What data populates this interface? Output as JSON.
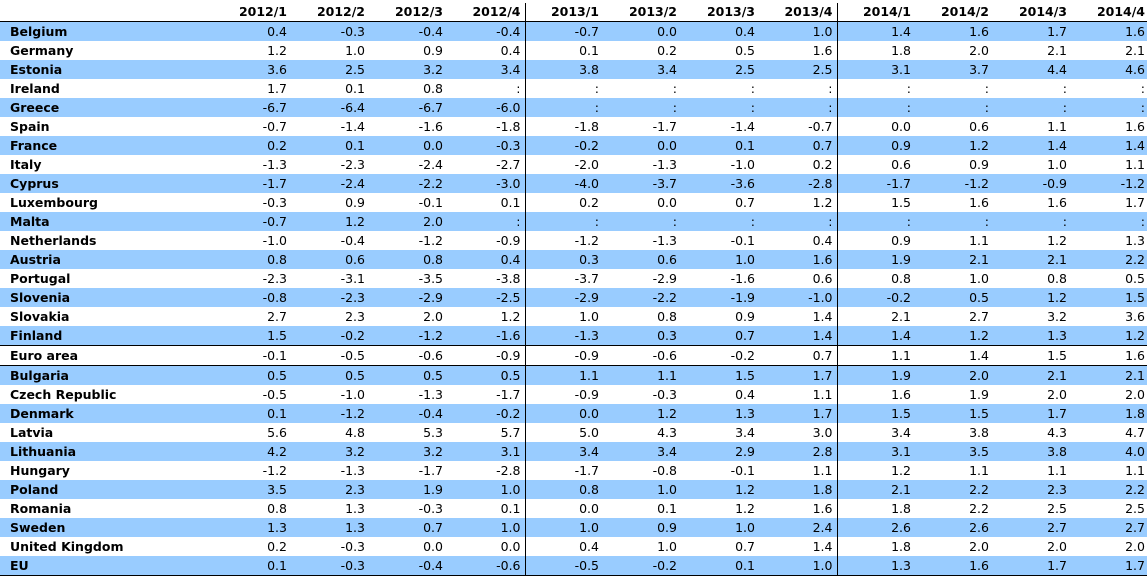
{
  "table": {
    "headers": [
      "",
      "2012/1",
      "2012/2",
      "2012/3",
      "2012/4",
      "2013/1",
      "2013/2",
      "2013/3",
      "2013/4",
      "2014/1",
      "2014/2",
      "2014/3",
      "2014/4"
    ],
    "rows": [
      {
        "country": "Belgium",
        "values": [
          "0.4",
          "-0.3",
          "-0.4",
          "-0.4",
          "-0.7",
          "0.0",
          "0.4",
          "1.0",
          "1.4",
          "1.6",
          "1.7",
          "1.6"
        ]
      },
      {
        "country": "Germany",
        "values": [
          "1.2",
          "1.0",
          "0.9",
          "0.4",
          "0.1",
          "0.2",
          "0.5",
          "1.6",
          "1.8",
          "2.0",
          "2.1",
          "2.1"
        ]
      },
      {
        "country": "Estonia",
        "values": [
          "3.6",
          "2.5",
          "3.2",
          "3.4",
          "3.8",
          "3.4",
          "2.5",
          "2.5",
          "3.1",
          "3.7",
          "4.4",
          "4.6"
        ]
      },
      {
        "country": "Ireland",
        "values": [
          "1.7",
          "0.1",
          "0.8",
          ":",
          ":",
          ":",
          ":",
          ":",
          ":",
          ":",
          ":",
          ":"
        ]
      },
      {
        "country": "Greece",
        "values": [
          "-6.7",
          "-6.4",
          "-6.7",
          "-6.0",
          ":",
          ":",
          ":",
          ":",
          ":",
          ":",
          ":",
          ":"
        ]
      },
      {
        "country": "Spain",
        "values": [
          "-0.7",
          "-1.4",
          "-1.6",
          "-1.8",
          "-1.8",
          "-1.7",
          "-1.4",
          "-0.7",
          "0.0",
          "0.6",
          "1.1",
          "1.6"
        ]
      },
      {
        "country": "France",
        "values": [
          "0.2",
          "0.1",
          "0.0",
          "-0.3",
          "-0.2",
          "0.0",
          "0.1",
          "0.7",
          "0.9",
          "1.2",
          "1.4",
          "1.4"
        ]
      },
      {
        "country": "Italy",
        "values": [
          "-1.3",
          "-2.3",
          "-2.4",
          "-2.7",
          "-2.0",
          "-1.3",
          "-1.0",
          "0.2",
          "0.6",
          "0.9",
          "1.0",
          "1.1"
        ]
      },
      {
        "country": "Cyprus",
        "values": [
          "-1.7",
          "-2.4",
          "-2.2",
          "-3.0",
          "-4.0",
          "-3.7",
          "-3.6",
          "-2.8",
          "-1.7",
          "-1.2",
          "-0.9",
          "-1.2"
        ]
      },
      {
        "country": "Luxembourg",
        "values": [
          "-0.3",
          "0.9",
          "-0.1",
          "0.1",
          "0.2",
          "0.0",
          "0.7",
          "1.2",
          "1.5",
          "1.6",
          "1.6",
          "1.7"
        ]
      },
      {
        "country": "Malta",
        "values": [
          "-0.7",
          "1.2",
          "2.0",
          ":",
          ":",
          ":",
          ":",
          ":",
          ":",
          ":",
          ":",
          ":"
        ]
      },
      {
        "country": "Netherlands",
        "values": [
          "-1.0",
          "-0.4",
          "-1.2",
          "-0.9",
          "-1.2",
          "-1.3",
          "-0.1",
          "0.4",
          "0.9",
          "1.1",
          "1.2",
          "1.3"
        ]
      },
      {
        "country": "Austria",
        "values": [
          "0.8",
          "0.6",
          "0.8",
          "0.4",
          "0.3",
          "0.6",
          "1.0",
          "1.6",
          "1.9",
          "2.1",
          "2.1",
          "2.2"
        ]
      },
      {
        "country": "Portugal",
        "values": [
          "-2.3",
          "-3.1",
          "-3.5",
          "-3.8",
          "-3.7",
          "-2.9",
          "-1.6",
          "0.6",
          "0.8",
          "1.0",
          "0.8",
          "0.5"
        ]
      },
      {
        "country": "Slovenia",
        "values": [
          "-0.8",
          "-2.3",
          "-2.9",
          "-2.5",
          "-2.9",
          "-2.2",
          "-1.9",
          "-1.0",
          "-0.2",
          "0.5",
          "1.2",
          "1.5"
        ]
      },
      {
        "country": "Slovakia",
        "values": [
          "2.7",
          "2.3",
          "2.0",
          "1.2",
          "1.0",
          "0.8",
          "0.9",
          "1.4",
          "2.1",
          "2.7",
          "3.2",
          "3.6"
        ]
      },
      {
        "country": "Finland",
        "values": [
          "1.5",
          "-0.2",
          "-1.2",
          "-1.6",
          "-1.3",
          "0.3",
          "0.7",
          "1.4",
          "1.4",
          "1.2",
          "1.3",
          "1.2"
        ]
      },
      {
        "country": "Euro area",
        "values": [
          "-0.1",
          "-0.5",
          "-0.6",
          "-0.9",
          "-0.9",
          "-0.6",
          "-0.2",
          "0.7",
          "1.1",
          "1.4",
          "1.5",
          "1.6"
        ]
      },
      {
        "country": "Bulgaria",
        "values": [
          "0.5",
          "0.5",
          "0.5",
          "0.5",
          "1.1",
          "1.1",
          "1.5",
          "1.7",
          "1.9",
          "2.0",
          "2.1",
          "2.1"
        ]
      },
      {
        "country": "Czech Republic",
        "values": [
          "-0.5",
          "-1.0",
          "-1.3",
          "-1.7",
          "-0.9",
          "-0.3",
          "0.4",
          "1.1",
          "1.6",
          "1.9",
          "2.0",
          "2.0"
        ]
      },
      {
        "country": "Denmark",
        "values": [
          "0.1",
          "-1.2",
          "-0.4",
          "-0.2",
          "0.0",
          "1.2",
          "1.3",
          "1.7",
          "1.5",
          "1.5",
          "1.7",
          "1.8"
        ]
      },
      {
        "country": "Latvia",
        "values": [
          "5.6",
          "4.8",
          "5.3",
          "5.7",
          "5.0",
          "4.3",
          "3.4",
          "3.0",
          "3.4",
          "3.8",
          "4.3",
          "4.7"
        ]
      },
      {
        "country": "Lithuania",
        "values": [
          "4.2",
          "3.2",
          "3.2",
          "3.1",
          "3.4",
          "3.4",
          "2.9",
          "2.8",
          "3.1",
          "3.5",
          "3.8",
          "4.0"
        ]
      },
      {
        "country": "Hungary",
        "values": [
          "-1.2",
          "-1.3",
          "-1.7",
          "-2.8",
          "-1.7",
          "-0.8",
          "-0.1",
          "1.1",
          "1.2",
          "1.1",
          "1.1",
          "1.1"
        ]
      },
      {
        "country": "Poland",
        "values": [
          "3.5",
          "2.3",
          "1.9",
          "1.0",
          "0.8",
          "1.0",
          "1.2",
          "1.8",
          "2.1",
          "2.2",
          "2.3",
          "2.2"
        ]
      },
      {
        "country": "Romania",
        "values": [
          "0.8",
          "1.3",
          "-0.3",
          "0.1",
          "0.0",
          "0.1",
          "1.2",
          "1.6",
          "1.8",
          "2.2",
          "2.5",
          "2.5"
        ]
      },
      {
        "country": "Sweden",
        "values": [
          "1.3",
          "1.3",
          "0.7",
          "1.0",
          "1.0",
          "0.9",
          "1.0",
          "2.4",
          "2.6",
          "2.6",
          "2.7",
          "2.7"
        ]
      },
      {
        "country": "United Kingdom",
        "values": [
          "0.2",
          "-0.3",
          "0.0",
          "0.0",
          "0.4",
          "1.0",
          "0.7",
          "1.4",
          "1.8",
          "2.0",
          "2.0",
          "2.0"
        ]
      },
      {
        "country": "EU",
        "values": [
          "0.1",
          "-0.3",
          "-0.4",
          "-0.6",
          "-0.5",
          "-0.2",
          "0.1",
          "1.0",
          "1.3",
          "1.6",
          "1.7",
          "1.7"
        ]
      }
    ],
    "colors": {
      "alt_row": "#99ccff",
      "rule": "#000000"
    }
  }
}
